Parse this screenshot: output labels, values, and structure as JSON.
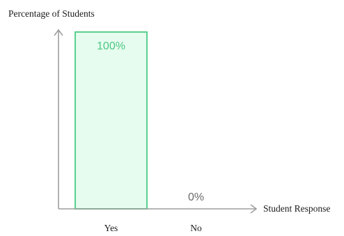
{
  "chart_data": {
    "type": "bar",
    "title": "",
    "xlabel": "Student Response",
    "ylabel": "Percentage of Students",
    "categories": [
      "Yes",
      "No"
    ],
    "values": [
      100,
      0
    ],
    "data_labels": [
      "100%",
      "0%"
    ],
    "ylim": [
      0,
      100
    ],
    "grid": false,
    "legend": "none",
    "colors": {
      "bar_fill": "#e6fcef",
      "bar_stroke": "#5bcf8f",
      "label_inside_bar": "#4cc884",
      "label_empty_bar": "#6b6b6b",
      "axis": "#9e9e9e"
    }
  }
}
